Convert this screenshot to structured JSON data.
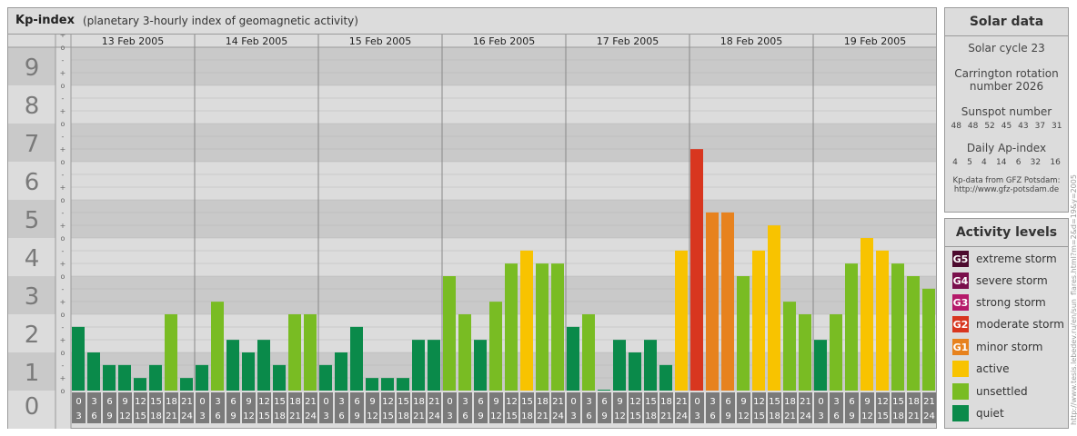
{
  "title": {
    "main": "Kp-index",
    "sub": "(planetary 3-hourly index of geomagnetic activity)"
  },
  "chart_data": {
    "type": "bar",
    "title": "Kp-index",
    "ylim": [
      0,
      9
    ],
    "y_ticks": [
      "0",
      "1",
      "2",
      "3",
      "4",
      "5",
      "6",
      "7",
      "8",
      "9"
    ],
    "sub_ticks": [
      "-",
      "o",
      "+"
    ],
    "days": [
      "13 Feb 2005",
      "14 Feb 2005",
      "15 Feb 2005",
      "16 Feb 2005",
      "17 Feb 2005",
      "18 Feb 2005",
      "19 Feb 2005"
    ],
    "hour_starts": [
      "0",
      "3",
      "6",
      "9",
      "12",
      "15",
      "18",
      "21"
    ],
    "hour_ends": [
      "3",
      "6",
      "9",
      "12",
      "15",
      "18",
      "21",
      "24"
    ],
    "values": [
      [
        1.67,
        1.0,
        0.67,
        0.67,
        0.33,
        0.67,
        2.0,
        0.33
      ],
      [
        0.67,
        2.33,
        1.33,
        1.0,
        1.33,
        0.67,
        2.0,
        2.0
      ],
      [
        0.67,
        1.0,
        1.67,
        0.33,
        0.33,
        0.33,
        1.33,
        1.33
      ],
      [
        3.0,
        2.0,
        1.33,
        2.33,
        3.33,
        3.67,
        3.33,
        3.33
      ],
      [
        1.67,
        2.0,
        0.0,
        1.33,
        1.0,
        1.33,
        0.67,
        3.67
      ],
      [
        6.33,
        4.67,
        4.67,
        3.0,
        3.67,
        4.33,
        2.33,
        2.0
      ],
      [
        1.33,
        2.0,
        3.33,
        4.0,
        3.67,
        3.33,
        3.0,
        2.67
      ]
    ],
    "level_colors": {
      "quiet": "#0a8a4a",
      "unsettled": "#79bc23",
      "active": "#f8c300",
      "G1": "#e7821e",
      "G2": "#d8361f",
      "G3": "#b51a6a",
      "G4": "#7a0f4c",
      "G5": "#4d0a2e"
    },
    "grid": true
  },
  "solar": {
    "title": "Solar data",
    "cycle": "Solar cycle 23",
    "carrington_line1": "Carrington rotation",
    "carrington_line2": "number 2026",
    "sunspot_label": "Sunspot number",
    "sunspot_values": [
      "48",
      "48",
      "52",
      "45",
      "43",
      "37",
      "31"
    ],
    "ap_label": "Daily Ap-index",
    "ap_values": [
      "4",
      "5",
      "4",
      "14",
      "6",
      "32",
      "16"
    ],
    "credit_line1": "Kp-data from GFZ Potsdam:",
    "credit_line2": "http://www.gfz-potsdam.de"
  },
  "activity": {
    "title": "Activity levels",
    "levels": [
      {
        "code": "G5",
        "label": "extreme storm",
        "color": "#4d0a2e"
      },
      {
        "code": "G4",
        "label": "severe storm",
        "color": "#7a0f4c"
      },
      {
        "code": "G3",
        "label": "strong storm",
        "color": "#b51a6a"
      },
      {
        "code": "G2",
        "label": "moderate storm",
        "color": "#d8361f"
      },
      {
        "code": "G1",
        "label": "minor storm",
        "color": "#e7821e"
      },
      {
        "code": "",
        "label": "active",
        "color": "#f8c300"
      },
      {
        "code": "",
        "label": "unsettled",
        "color": "#79bc23"
      },
      {
        "code": "",
        "label": "quiet",
        "color": "#0a8a4a"
      }
    ]
  },
  "watermark": "http://www.tesis.lebedev.ru/en/sun_flares.html?m=2&d=19&y=2005"
}
